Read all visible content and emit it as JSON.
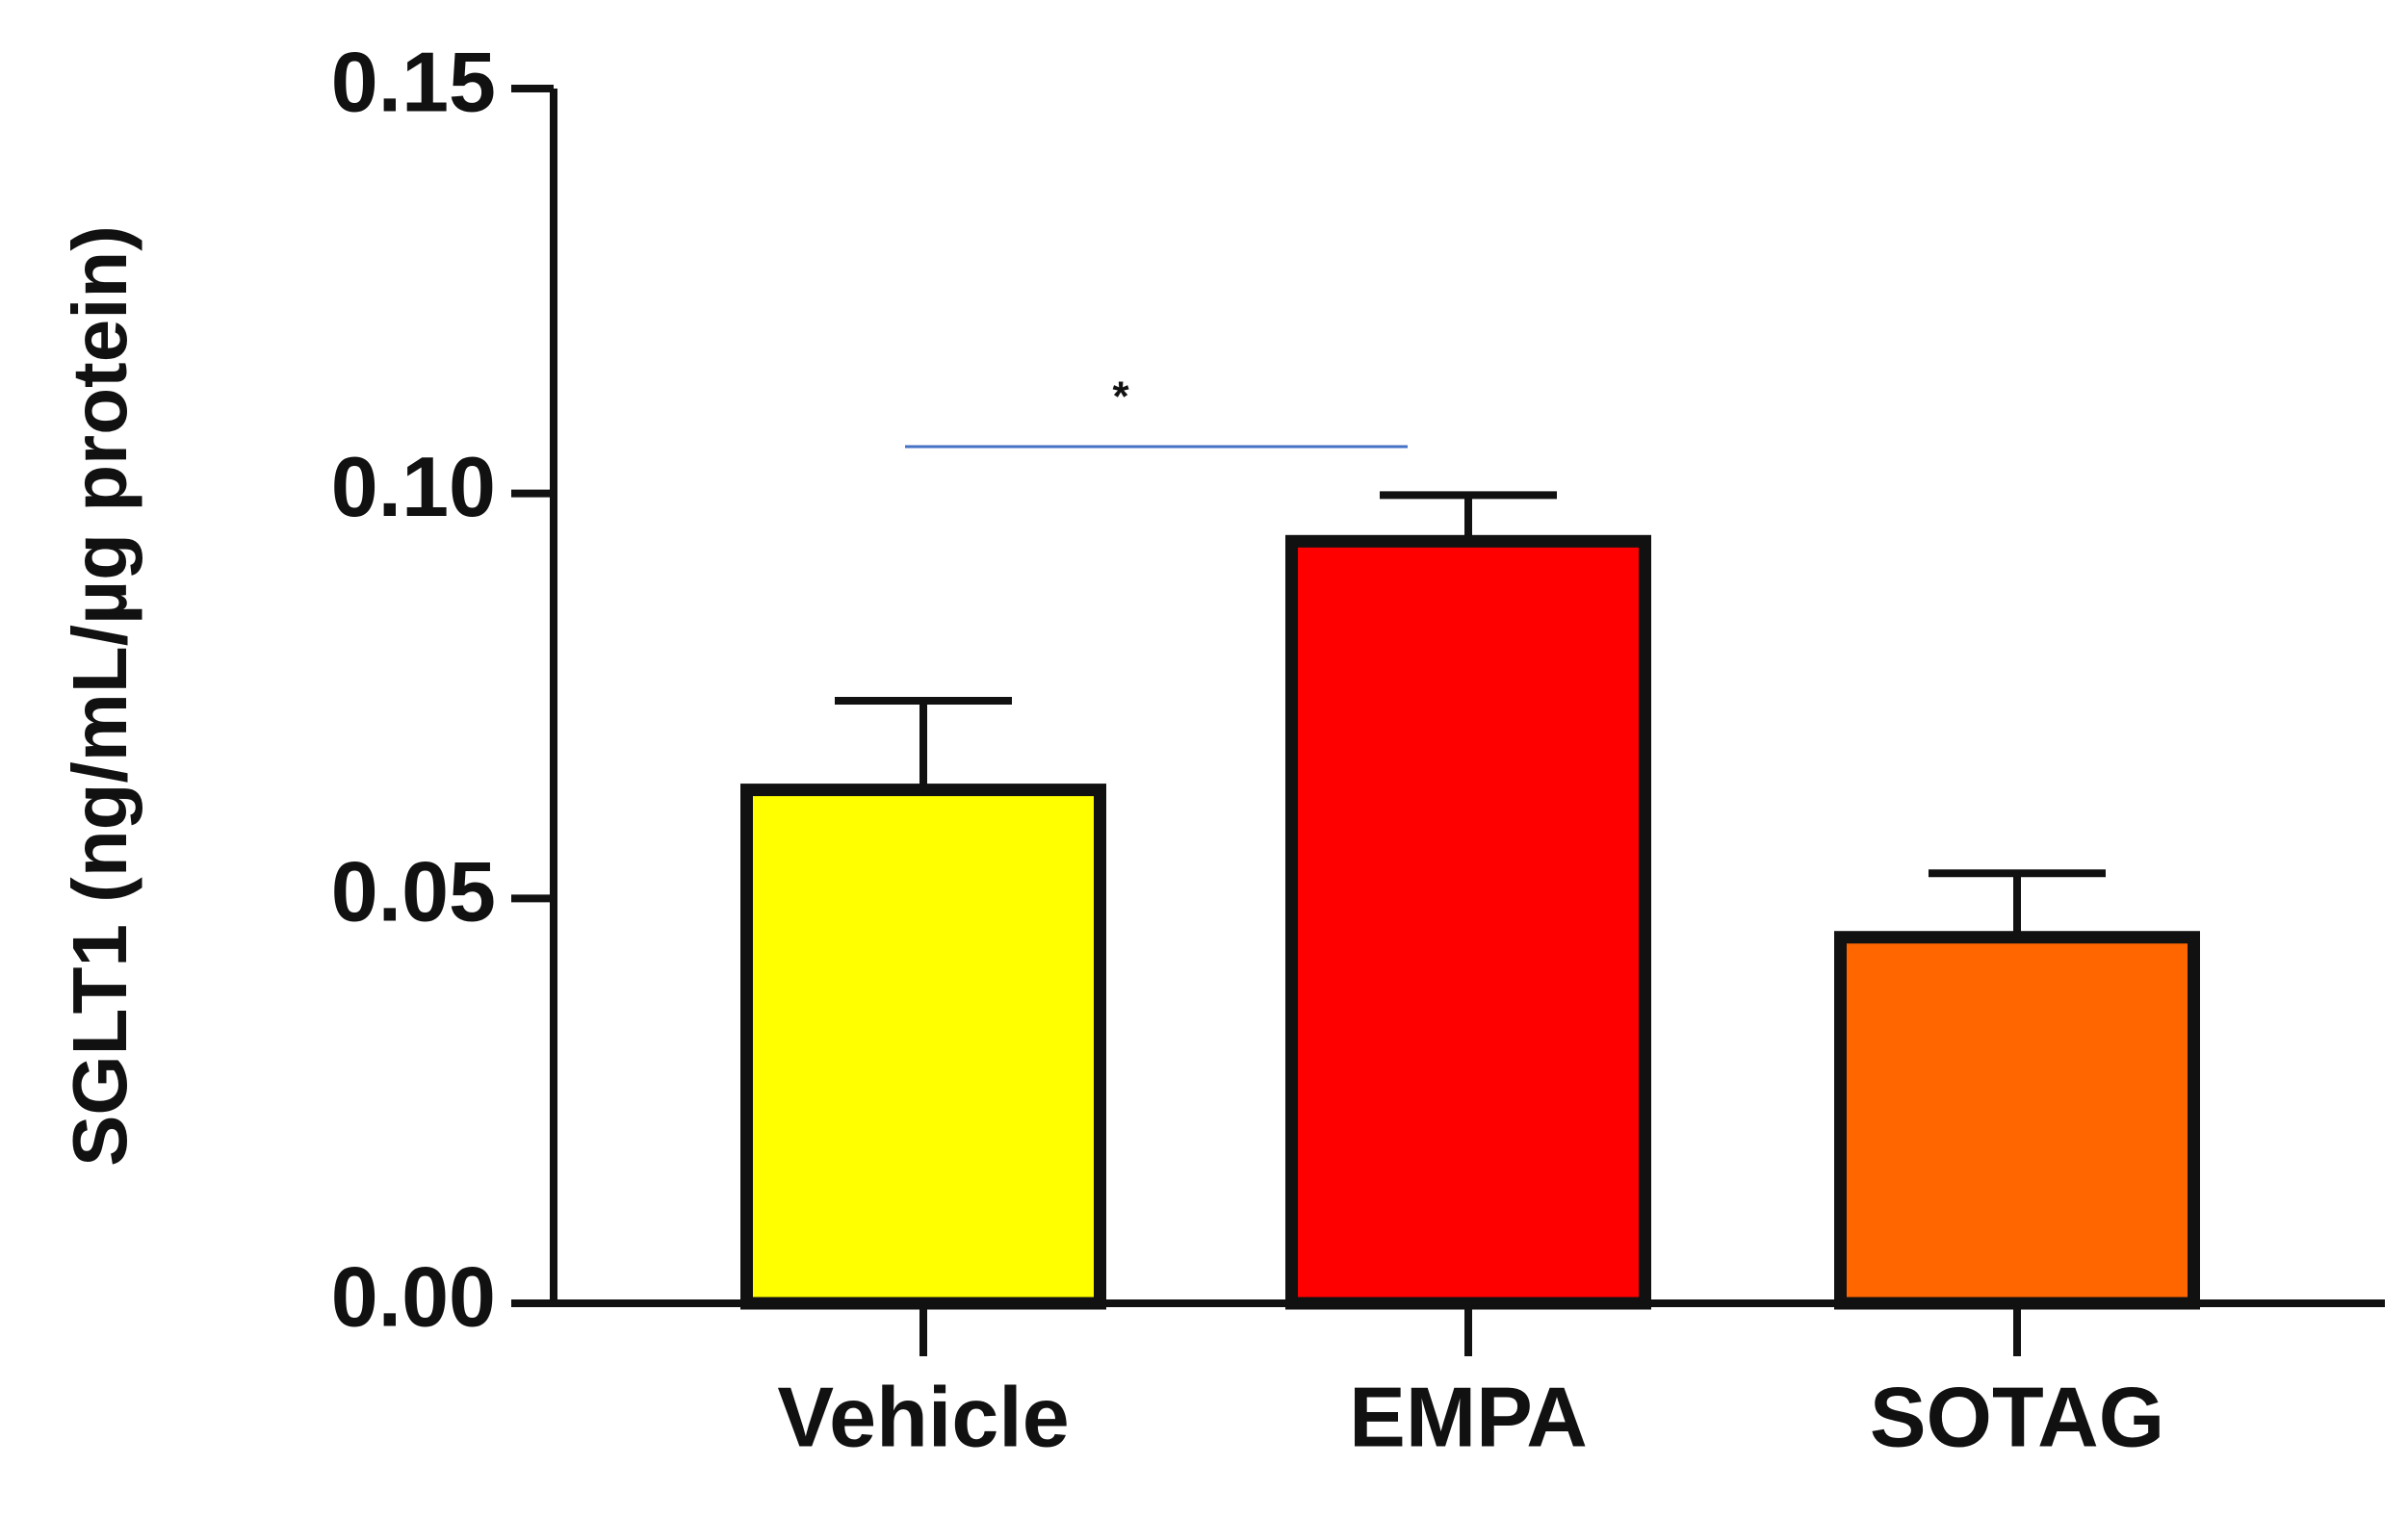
{
  "chart_data": {
    "type": "bar",
    "y_label": "SGLT1 (ng/mL/µg protein)",
    "categories": [
      "Vehicle",
      "EMPA",
      "SOTAG"
    ],
    "values": [
      0.0634,
      0.0941,
      0.0452
    ],
    "errors": [
      0.011,
      0.0057,
      0.0079
    ],
    "colors": [
      "#ffff00",
      "#ff0000",
      "#ff6600"
    ],
    "ylim": [
      0,
      0.15
    ],
    "yticks": [
      {
        "value": 0,
        "label": "0.00"
      },
      {
        "value": 0.05,
        "label": "0.05"
      },
      {
        "value": 0.1,
        "label": "0.10"
      },
      {
        "value": 0.15,
        "label": "0.15"
      }
    ],
    "annotations": [
      "*"
    ]
  }
}
